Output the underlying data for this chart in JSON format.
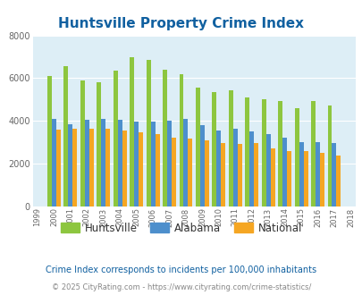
{
  "title": "Huntsville Property Crime Index",
  "title_color": "#1060a0",
  "years": [
    1999,
    2000,
    2001,
    2002,
    2003,
    2004,
    2005,
    2006,
    2007,
    2008,
    2009,
    2010,
    2011,
    2012,
    2013,
    2014,
    2015,
    2016,
    2017,
    2018
  ],
  "huntsville": [
    null,
    6100,
    6550,
    5875,
    5800,
    6350,
    7000,
    6875,
    6400,
    6200,
    5550,
    5350,
    5450,
    5100,
    5000,
    4950,
    4600,
    4950,
    4725,
    null
  ],
  "alabama": [
    null,
    4100,
    3850,
    4050,
    4100,
    4050,
    3950,
    3950,
    4000,
    4100,
    3800,
    3550,
    3625,
    3525,
    3375,
    3200,
    3025,
    3000,
    2950,
    null
  ],
  "national": [
    null,
    3600,
    3625,
    3650,
    3625,
    3550,
    3450,
    3375,
    3225,
    3175,
    3075,
    2975,
    2925,
    2950,
    2725,
    2600,
    2575,
    2500,
    2400,
    null
  ],
  "huntsville_color": "#8dc63f",
  "alabama_color": "#4d8fcc",
  "national_color": "#f5a623",
  "bg_color": "#ddeef6",
  "ylim": [
    0,
    8000
  ],
  "yticks": [
    0,
    2000,
    4000,
    6000,
    8000
  ],
  "footnote1": "Crime Index corresponds to incidents per 100,000 inhabitants",
  "footnote2": "© 2025 CityRating.com - https://www.cityrating.com/crime-statistics/",
  "footnote1_color": "#1060a0",
  "footnote2_color": "#888888",
  "legend_labels": [
    "Huntsville",
    "Alabama",
    "National"
  ],
  "bar_width": 0.27
}
